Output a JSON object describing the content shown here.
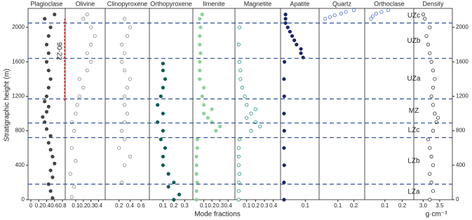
{
  "chart_data": {
    "type": "scatter",
    "ylabel": "Stratigraphic height (m)",
    "xlabel": "Mode fractions",
    "x2label": "g·cm⁻³",
    "ylim": [
      0,
      2220
    ],
    "yticks": [
      0,
      400,
      800,
      1200,
      1600,
      2000
    ],
    "boundaries": [
      180,
      720,
      890,
      1170,
      1640,
      2050
    ],
    "zones": [
      "LZa",
      "LZb",
      "LZc",
      "MZ",
      "UZa",
      "UZb",
      "UZc"
    ],
    "annotation": {
      "text": "90-22",
      "range": [
        1150,
        2100
      ]
    },
    "panels": [
      {
        "name": "Plagioclase",
        "color": "#444444",
        "filled": true,
        "xlim": [
          0,
          0.8
        ],
        "xticks": [
          0,
          0.2,
          0.4,
          0.6,
          0.8
        ],
        "y": [
          20,
          100,
          180,
          260,
          340,
          420,
          500,
          580,
          660,
          740,
          820,
          900,
          960,
          1020,
          1080,
          1140,
          1200,
          1300,
          1400,
          1500,
          1600,
          1700,
          1800,
          1900,
          2000,
          2100,
          2150
        ],
        "x": [
          0.55,
          0.5,
          0.45,
          0.55,
          0.5,
          0.6,
          0.55,
          0.5,
          0.45,
          0.5,
          0.4,
          0.35,
          0.3,
          0.4,
          0.45,
          0.35,
          0.4,
          0.45,
          0.5,
          0.45,
          0.4,
          0.45,
          0.4,
          0.45,
          0.5,
          0.35,
          0.6
        ]
      },
      {
        "name": "Olivine",
        "color": "#888888",
        "filled": false,
        "xlim": [
          0,
          0.45
        ],
        "xticks": [
          0.1,
          0.2,
          0.3,
          0.4
        ],
        "y": [
          30,
          150,
          300,
          450,
          600,
          800,
          900,
          1000,
          1100,
          1200,
          1300,
          1400,
          1500,
          1600,
          1700,
          1800,
          1900,
          2000,
          2100,
          2150
        ],
        "x": [
          0.05,
          0.08,
          0.03,
          0.1,
          0.05,
          0.08,
          0.05,
          0.1,
          0.12,
          0.15,
          0.2,
          0.15,
          0.25,
          0.3,
          0.25,
          0.3,
          0.35,
          0.3,
          0.2,
          0.25
        ]
      },
      {
        "name": "Clinopyroxene",
        "color": "#888888",
        "filled": false,
        "xlim": [
          0,
          0.7
        ],
        "xticks": [
          0.2,
          0.4,
          0.6
        ],
        "y": [
          200,
          400,
          500,
          600,
          700,
          800,
          900,
          1000,
          1100,
          1200,
          1300,
          1400,
          1500,
          1600,
          1700,
          1800,
          1900,
          2000,
          2100
        ],
        "x": [
          0.25,
          0.3,
          0.4,
          0.2,
          0.3,
          0.25,
          0.3,
          0.35,
          0.3,
          0.3,
          0.35,
          0.4,
          0.3,
          0.25,
          0.3,
          0.25,
          0.35,
          0.4,
          0.3
        ]
      },
      {
        "name": "Orthopyroxene",
        "color": "#0d5c57",
        "filled": true,
        "xlim": [
          0,
          0.35
        ],
        "xticks": [
          0.1,
          0.2,
          0.3
        ],
        "y": [
          0,
          60,
          150,
          200,
          300,
          400,
          500,
          600,
          700,
          800,
          900,
          1000,
          1100,
          1200,
          1300,
          1400,
          1500,
          1580
        ],
        "x": [
          0.2,
          0.25,
          0.15,
          0.2,
          0.15,
          0.1,
          0.1,
          0.12,
          0.08,
          0.1,
          0.05,
          0.1,
          0.05,
          0.08,
          0.1,
          0.12,
          0.1,
          0.1
        ]
      },
      {
        "name": "Ilmenite",
        "color": "#8fd19a",
        "filled": true,
        "xlim": [
          0,
          0.45
        ],
        "xticks": [
          0.1,
          0.2,
          0.3,
          0.4
        ],
        "y": [
          0,
          100,
          200,
          300,
          400,
          500,
          600,
          700,
          800,
          850,
          900,
          950,
          1000,
          1050,
          1100,
          1200,
          1300,
          1400,
          1500,
          1600,
          1700,
          1800,
          1900,
          2000,
          2100,
          2150
        ],
        "x": [
          0.01,
          0.01,
          0.02,
          0.01,
          0.01,
          0.01,
          0.02,
          0.02,
          0.25,
          0.3,
          0.2,
          0.15,
          0.1,
          0.2,
          0.1,
          0.08,
          0.1,
          0.05,
          0.05,
          0.05,
          0.06,
          0.05,
          0.05,
          0.06,
          0.05,
          0.08
        ]
      },
      {
        "name": "Magnetite",
        "color": "#2a8a8a",
        "filled": false,
        "xlim": [
          0,
          0.45
        ],
        "xticks": [
          0.1,
          0.2,
          0.3,
          0.4
        ],
        "y": [
          0,
          100,
          200,
          300,
          400,
          500,
          600,
          700,
          800,
          850,
          900,
          950,
          1000,
          1050,
          1100,
          1200,
          1300,
          1400,
          1500,
          1600,
          1800,
          2000
        ],
        "x": [
          0.01,
          0.01,
          0.01,
          0.02,
          0.01,
          0.01,
          0.01,
          0.02,
          0.15,
          0.25,
          0.2,
          0.1,
          0.15,
          0.2,
          0.1,
          0.08,
          0.05,
          0.03,
          0.03,
          0.02,
          0.01,
          0.02
        ]
      },
      {
        "name": "Apatite",
        "color": "#1a2466",
        "filled": true,
        "xlim": [
          0,
          0.15
        ],
        "xticks": [
          0.1
        ],
        "y": [
          0,
          200,
          400,
          600,
          800,
          1000,
          1200,
          1400,
          1600,
          1650,
          1700,
          1750,
          1800,
          1850,
          1900,
          1950,
          2000,
          2050,
          2100,
          2150
        ],
        "x": [
          0.003,
          0.003,
          0.004,
          0.003,
          0.004,
          0.003,
          0.004,
          0.003,
          0.005,
          0.09,
          0.08,
          0.08,
          0.06,
          0.05,
          0.04,
          0.03,
          0.02,
          0.01,
          0.01,
          0.01
        ]
      },
      {
        "name": "Quartz",
        "color": "#4a6fc4",
        "filled": false,
        "xlim": [
          0,
          0.25
        ],
        "xticks": [
          0.1,
          0.2
        ],
        "y": [
          2100,
          2120,
          2140,
          2160,
          2180,
          2200
        ],
        "x": [
          0.02,
          0.05,
          0.08,
          0.12,
          0.15,
          0.2
        ]
      },
      {
        "name": "Orthoclase",
        "color": "#4a6fc4",
        "filled": false,
        "xlim": [
          0,
          0.25
        ],
        "xticks": [
          0.1,
          0.2
        ],
        "y": [
          2100,
          2130,
          2160,
          2180,
          2200
        ],
        "x": [
          0.02,
          0.03,
          0.05,
          0.08,
          0.12
        ]
      },
      {
        "name": "Density",
        "color": "#333333",
        "filled": false,
        "xlim": [
          2.8,
          3.8
        ],
        "xticks": [
          {
            "value": 3,
            "label": "3.0"
          },
          3.5
        ],
        "y": [
          0,
          100,
          200,
          300,
          400,
          500,
          600,
          700,
          800,
          900,
          950,
          1000,
          1100,
          1200,
          1300,
          1400,
          1500,
          1600,
          1700,
          1800,
          1900,
          2000,
          2100,
          2150
        ],
        "x": [
          3.2,
          3.3,
          3.25,
          3.2,
          3.3,
          3.25,
          3.2,
          3.15,
          3.3,
          3.4,
          3.45,
          3.35,
          3.3,
          3.25,
          3.3,
          3.35,
          3.3,
          3.25,
          3.2,
          3.15,
          3.1,
          3.2,
          3.05,
          3.0
        ]
      }
    ]
  }
}
